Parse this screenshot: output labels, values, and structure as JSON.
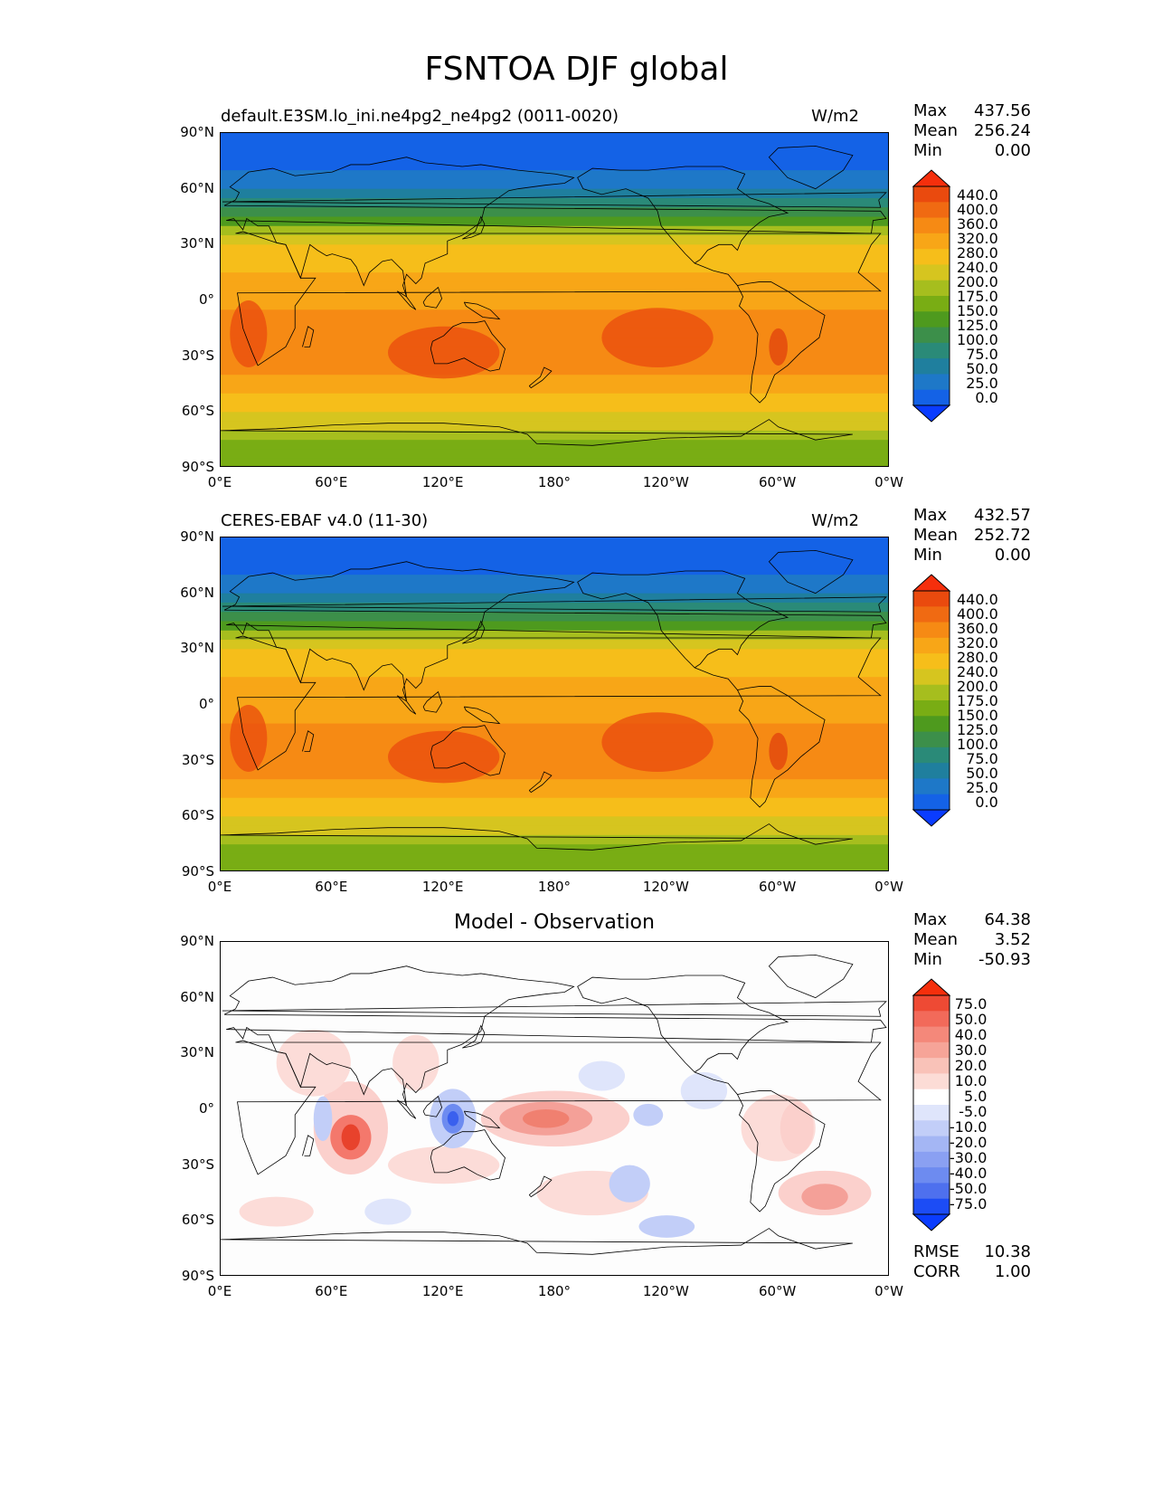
{
  "title": "FSNTOA DJF global",
  "axes": {
    "yticks": [
      "90°N",
      "60°N",
      "30°N",
      "0°",
      "30°S",
      "60°S",
      "90°S"
    ],
    "xticks": [
      "0°E",
      "60°E",
      "120°E",
      "180°",
      "120°W",
      "60°W",
      "0°W"
    ]
  },
  "panels": [
    {
      "label": "default.E3SM.lo_ini.ne4pg2_ne4pg2 (0011-0020)",
      "units": "W/m2",
      "stats": [
        {
          "k": "Max",
          "v": "437.56"
        },
        {
          "k": "Mean",
          "v": "256.24"
        },
        {
          "k": "Min",
          "v": "0.00"
        }
      ],
      "colorbar": [
        "440.0",
        "400.0",
        "360.0",
        "320.0",
        "280.0",
        "240.0",
        "200.0",
        "175.0",
        "150.0",
        "125.0",
        "100.0",
        "75.0",
        "50.0",
        "25.0",
        "0.0"
      ]
    },
    {
      "label": "CERES-EBAF v4.0 (11-30)",
      "units": "W/m2",
      "stats": [
        {
          "k": "Max",
          "v": "432.57"
        },
        {
          "k": "Mean",
          "v": "252.72"
        },
        {
          "k": "Min",
          "v": "0.00"
        }
      ],
      "colorbar": [
        "440.0",
        "400.0",
        "360.0",
        "320.0",
        "280.0",
        "240.0",
        "200.0",
        "175.0",
        "150.0",
        "125.0",
        "100.0",
        "75.0",
        "50.0",
        "25.0",
        "0.0"
      ]
    },
    {
      "label": "Model - Observation",
      "units": "",
      "stats": [
        {
          "k": "Max",
          "v": "64.38"
        },
        {
          "k": "Mean",
          "v": "3.52"
        },
        {
          "k": "Min",
          "v": "-50.93"
        }
      ],
      "colorbar": [
        "75.0",
        "50.0",
        "40.0",
        "30.0",
        "20.0",
        "10.0",
        "5.0",
        "-5.0",
        "-10.0",
        "-20.0",
        "-30.0",
        "-40.0",
        "-50.0",
        "-75.0"
      ],
      "extra_stats": [
        {
          "k": "RMSE",
          "v": "10.38"
        },
        {
          "k": "CORR",
          "v": "1.00"
        }
      ]
    }
  ],
  "chart_data": [
    {
      "type": "heatmap",
      "title": "default.E3SM.lo_ini.ne4pg2_ne4pg2 (0011-0020)",
      "units": "W/m2",
      "x_range": [
        0,
        360
      ],
      "y_range": [
        -90,
        90
      ],
      "stats": {
        "max": 437.56,
        "mean": 256.24,
        "min": 0.0
      },
      "levels": [
        0,
        25,
        50,
        75,
        100,
        125,
        150,
        175,
        200,
        240,
        280,
        320,
        360,
        400,
        440
      ],
      "zonal_profile": {
        "lat": [
          90,
          80,
          70,
          60,
          50,
          40,
          30,
          20,
          10,
          0,
          -10,
          -20,
          -30,
          -40,
          -50,
          -60,
          -70,
          -80,
          -90
        ],
        "value": [
          0,
          15,
          25,
          45,
          90,
          160,
          230,
          270,
          290,
          300,
          330,
          360,
          350,
          320,
          280,
          240,
          190,
          160,
          150
        ]
      }
    },
    {
      "type": "heatmap",
      "title": "CERES-EBAF v4.0 (11-30)",
      "units": "W/m2",
      "x_range": [
        0,
        360
      ],
      "y_range": [
        -90,
        90
      ],
      "stats": {
        "max": 432.57,
        "mean": 252.72,
        "min": 0.0
      },
      "levels": [
        0,
        25,
        50,
        75,
        100,
        125,
        150,
        175,
        200,
        240,
        280,
        320,
        360,
        400,
        440
      ],
      "zonal_profile": {
        "lat": [
          90,
          80,
          70,
          60,
          50,
          40,
          30,
          20,
          10,
          0,
          -10,
          -20,
          -30,
          -40,
          -50,
          -60,
          -70,
          -80,
          -90
        ],
        "value": [
          0,
          15,
          25,
          45,
          95,
          165,
          235,
          270,
          290,
          300,
          325,
          355,
          345,
          315,
          280,
          240,
          190,
          160,
          150
        ]
      }
    },
    {
      "type": "heatmap",
      "title": "Model - Observation",
      "x_range": [
        0,
        360
      ],
      "y_range": [
        -90,
        90
      ],
      "stats": {
        "max": 64.38,
        "mean": 3.52,
        "min": -50.93,
        "rmse": 10.38,
        "corr": 1.0
      },
      "levels": [
        -75,
        -50,
        -40,
        -30,
        -20,
        -10,
        -5,
        5,
        10,
        20,
        30,
        40,
        50,
        75
      ]
    }
  ]
}
